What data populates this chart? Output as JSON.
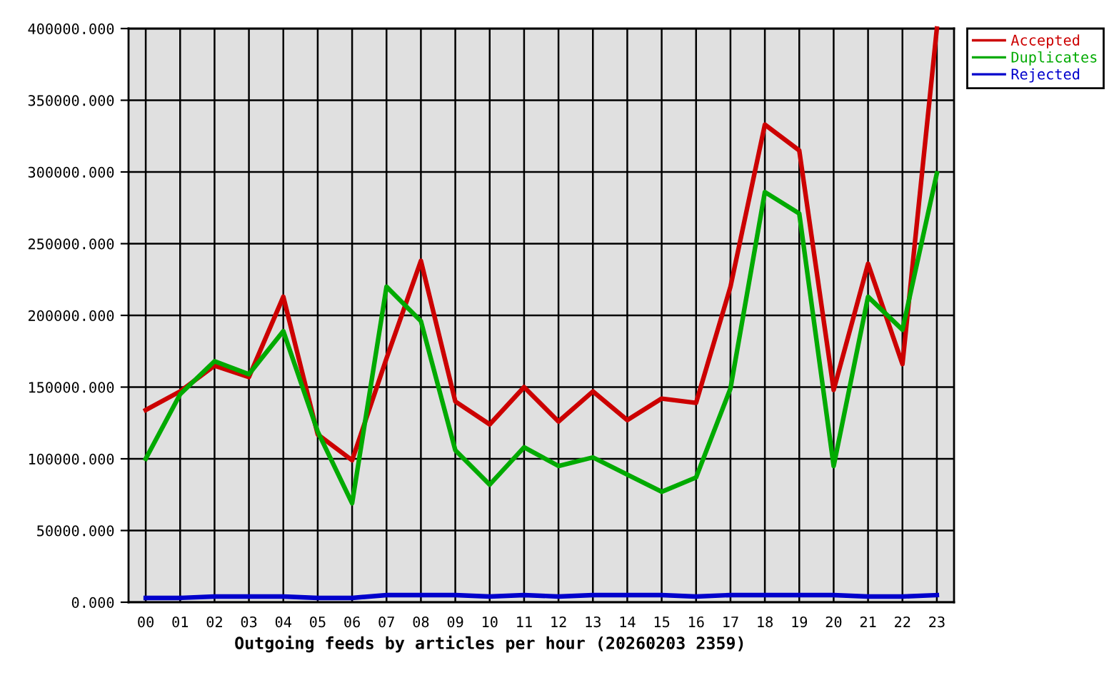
{
  "chart_data": {
    "type": "line",
    "xlabel": "Outgoing feeds by articles per hour (20260203 2359)",
    "categories": [
      "00",
      "01",
      "02",
      "03",
      "04",
      "05",
      "06",
      "07",
      "08",
      "09",
      "10",
      "11",
      "12",
      "13",
      "14",
      "15",
      "16",
      "17",
      "18",
      "19",
      "20",
      "21",
      "22",
      "23"
    ],
    "series": [
      {
        "name": "Accepted",
        "color": "#cc0000",
        "values": [
          134000,
          147000,
          165000,
          157000,
          213000,
          117000,
          99000,
          170000,
          238000,
          140000,
          124000,
          150000,
          126000,
          147000,
          127000,
          142000,
          139000,
          220000,
          333000,
          315000,
          148000,
          236000,
          166000,
          400000
        ]
      },
      {
        "name": "Duplicates",
        "color": "#00aa00",
        "values": [
          100000,
          145000,
          168000,
          159000,
          189000,
          119000,
          69000,
          220000,
          196000,
          106000,
          82000,
          108000,
          95000,
          101000,
          89000,
          77000,
          87000,
          149000,
          286000,
          271000,
          95000,
          213000,
          190000,
          299000
        ]
      },
      {
        "name": "Rejected",
        "color": "#0000cc",
        "values": [
          3000,
          3000,
          4000,
          4000,
          4000,
          3000,
          3000,
          5000,
          5000,
          5000,
          4000,
          5000,
          4000,
          5000,
          5000,
          5000,
          4000,
          5000,
          5000,
          5000,
          5000,
          4000,
          4000,
          5000
        ]
      }
    ],
    "ylim": [
      0,
      400000
    ],
    "yticks": [
      {
        "value": 0,
        "label": "0.000"
      },
      {
        "value": 50000,
        "label": "50000.000"
      },
      {
        "value": 100000,
        "label": "100000.000"
      },
      {
        "value": 150000,
        "label": "150000.000"
      },
      {
        "value": 200000,
        "label": "200000.000"
      },
      {
        "value": 250000,
        "label": "250000.000"
      },
      {
        "value": 300000,
        "label": "300000.000"
      },
      {
        "value": 350000,
        "label": "350000.000"
      },
      {
        "value": 400000,
        "label": "400000.000"
      }
    ],
    "grid": true,
    "legend": "top right",
    "line_style": "solid"
  }
}
